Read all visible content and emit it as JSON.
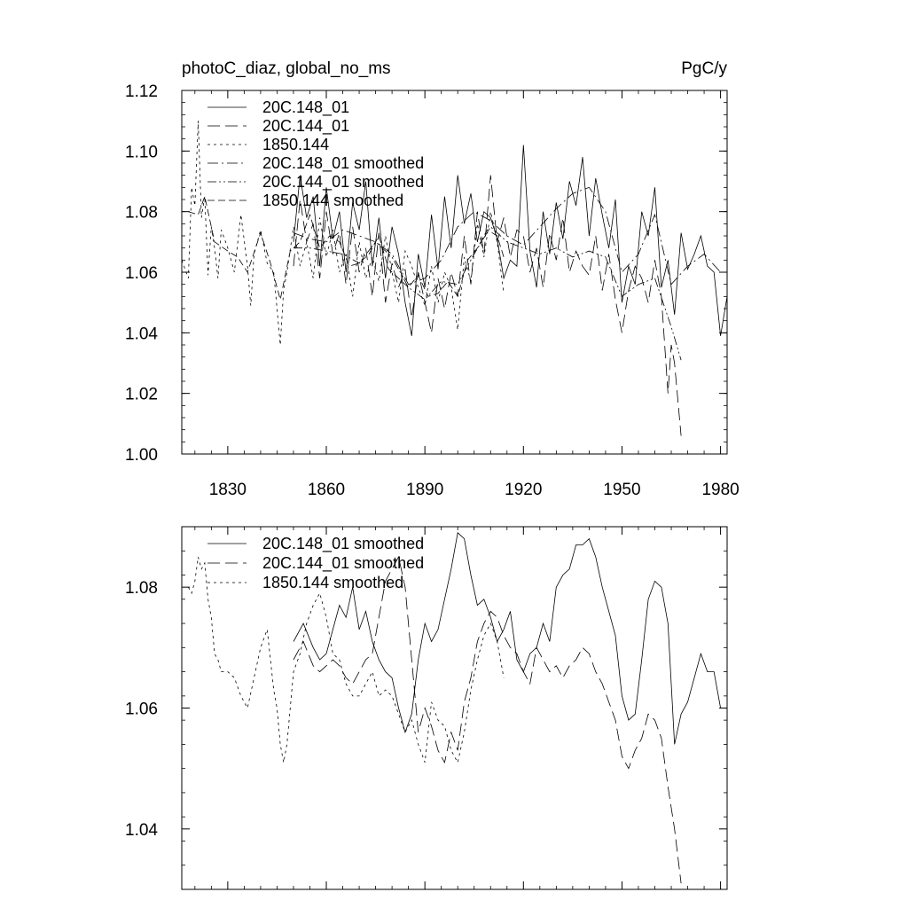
{
  "chart_data": [
    {
      "type": "line",
      "title": "photoC_diaz, global_no_ms",
      "units": "PgC/y",
      "xlim": [
        1816,
        1982
      ],
      "ylim": [
        1.0,
        1.12
      ],
      "xticks": [
        1830,
        1860,
        1890,
        1920,
        1950,
        1980
      ],
      "yticks": [
        1.0,
        1.02,
        1.04,
        1.06,
        1.08,
        1.1,
        1.12
      ],
      "ytick_labels": [
        "1.00",
        "1.02",
        "1.04",
        "1.06",
        "1.08",
        "1.10",
        "1.12"
      ],
      "legend": [
        "20C.148_01",
        "20C.144_01",
        "1850.144",
        "20C.148_01 smoothed",
        "20C.144_01 smoothed",
        "1850.144 smoothed"
      ],
      "series": [
        {
          "name": "20C.148_01",
          "dash": "solid",
          "x": [
            1850,
            1852,
            1854,
            1856,
            1858,
            1860,
            1862,
            1864,
            1866,
            1868,
            1870,
            1872,
            1874,
            1876,
            1878,
            1880,
            1882,
            1884,
            1886,
            1888,
            1890,
            1892,
            1894,
            1896,
            1898,
            1900,
            1902,
            1904,
            1906,
            1908,
            1910,
            1912,
            1914,
            1916,
            1918,
            1920,
            1922,
            1924,
            1926,
            1928,
            1930,
            1932,
            1934,
            1936,
            1938,
            1940,
            1942,
            1944,
            1946,
            1948,
            1950,
            1952,
            1954,
            1956,
            1958,
            1960,
            1962,
            1964,
            1966,
            1968,
            1970,
            1972,
            1974,
            1976,
            1978,
            1980,
            1982
          ],
          "values": [
            1.07,
            1.092,
            1.078,
            1.085,
            1.062,
            1.088,
            1.071,
            1.08,
            1.06,
            1.083,
            1.074,
            1.09,
            1.062,
            1.078,
            1.058,
            1.075,
            1.066,
            1.05,
            1.039,
            1.066,
            1.055,
            1.079,
            1.061,
            1.085,
            1.068,
            1.092,
            1.076,
            1.086,
            1.07,
            1.08,
            1.078,
            1.071,
            1.058,
            1.064,
            1.062,
            1.102,
            1.067,
            1.055,
            1.08,
            1.066,
            1.083,
            1.071,
            1.09,
            1.082,
            1.098,
            1.072,
            1.091,
            1.079,
            1.068,
            1.084,
            1.05,
            1.062,
            1.056,
            1.08,
            1.072,
            1.088,
            1.055,
            1.064,
            1.046,
            1.073,
            1.061,
            1.066,
            1.072,
            1.062,
            1.06,
            1.039,
            1.052
          ]
        },
        {
          "name": "20C.144_01",
          "dash": "long",
          "x": [
            1850,
            1852,
            1854,
            1856,
            1858,
            1860,
            1862,
            1864,
            1866,
            1868,
            1870,
            1872,
            1874,
            1876,
            1878,
            1880,
            1882,
            1884,
            1886,
            1888,
            1890,
            1892,
            1894,
            1896,
            1898,
            1900,
            1902,
            1904,
            1906,
            1908,
            1910,
            1912,
            1914,
            1916,
            1918,
            1920,
            1922,
            1924,
            1926,
            1928,
            1930,
            1932,
            1934,
            1936,
            1938,
            1940,
            1942,
            1944,
            1946,
            1948,
            1950,
            1952,
            1954,
            1956,
            1958,
            1960,
            1962,
            1964,
            1965,
            1966,
            1968
          ],
          "values": [
            1.062,
            1.084,
            1.07,
            1.076,
            1.058,
            1.08,
            1.066,
            1.073,
            1.056,
            1.075,
            1.06,
            1.068,
            1.052,
            1.073,
            1.05,
            1.063,
            1.055,
            1.061,
            1.045,
            1.06,
            1.05,
            1.04,
            1.058,
            1.048,
            1.06,
            1.052,
            1.072,
            1.056,
            1.08,
            1.066,
            1.092,
            1.07,
            1.078,
            1.065,
            1.074,
            1.072,
            1.06,
            1.068,
            1.055,
            1.073,
            1.064,
            1.078,
            1.06,
            1.067,
            1.062,
            1.059,
            1.072,
            1.054,
            1.066,
            1.051,
            1.04,
            1.054,
            1.062,
            1.058,
            1.05,
            1.064,
            1.052,
            1.02,
            1.036,
            1.03,
            1.006
          ]
        },
        {
          "name": "1850.144",
          "dash": "short",
          "x": [
            1816,
            1818,
            1819,
            1820,
            1821,
            1822,
            1823,
            1824,
            1825,
            1826,
            1827,
            1828,
            1830,
            1832,
            1834,
            1836,
            1837,
            1838,
            1840,
            1842,
            1844,
            1846,
            1847,
            1848,
            1850,
            1852,
            1854,
            1856,
            1858,
            1860,
            1862,
            1864,
            1866,
            1868,
            1870,
            1872,
            1874,
            1876,
            1878,
            1880,
            1882,
            1884,
            1886,
            1888,
            1890,
            1892,
            1894,
            1896,
            1898,
            1900,
            1902,
            1904,
            1906,
            1908,
            1910,
            1912,
            1914
          ],
          "values": [
            1.064,
            1.058,
            1.088,
            1.082,
            1.11,
            1.078,
            1.085,
            1.059,
            1.075,
            1.068,
            1.058,
            1.074,
            1.068,
            1.06,
            1.079,
            1.062,
            1.049,
            1.066,
            1.074,
            1.063,
            1.06,
            1.036,
            1.054,
            1.06,
            1.075,
            1.062,
            1.07,
            1.058,
            1.078,
            1.065,
            1.074,
            1.06,
            1.066,
            1.052,
            1.07,
            1.058,
            1.065,
            1.057,
            1.072,
            1.06,
            1.05,
            1.067,
            1.062,
            1.055,
            1.049,
            1.062,
            1.05,
            1.06,
            1.055,
            1.041,
            1.065,
            1.057,
            1.076,
            1.065,
            1.08,
            1.07,
            1.053
          ]
        },
        {
          "name": "20C.148_01 smoothed",
          "dash": "dashdot",
          "x": [
            1850,
            1855,
            1860,
            1865,
            1870,
            1875,
            1880,
            1885,
            1890,
            1895,
            1900,
            1905,
            1910,
            1915,
            1920,
            1925,
            1930,
            1935,
            1940,
            1945,
            1950,
            1955,
            1960,
            1965,
            1970,
            1975,
            1980
          ],
          "values": [
            1.073,
            1.071,
            1.07,
            1.074,
            1.072,
            1.07,
            1.066,
            1.056,
            1.058,
            1.064,
            1.075,
            1.08,
            1.077,
            1.072,
            1.069,
            1.075,
            1.081,
            1.086,
            1.088,
            1.08,
            1.06,
            1.066,
            1.079,
            1.056,
            1.062,
            1.066,
            1.06
          ]
        },
        {
          "name": "20C.144_01 smoothed",
          "dash": "dashdotdot",
          "x": [
            1850,
            1855,
            1860,
            1865,
            1870,
            1875,
            1880,
            1885,
            1890,
            1895,
            1900,
            1905,
            1910,
            1915,
            1920,
            1925,
            1930,
            1935,
            1940,
            1945,
            1950,
            1955,
            1960,
            1965,
            1968
          ],
          "values": [
            1.068,
            1.068,
            1.067,
            1.066,
            1.063,
            1.07,
            1.065,
            1.055,
            1.051,
            1.057,
            1.056,
            1.066,
            1.075,
            1.07,
            1.068,
            1.066,
            1.068,
            1.065,
            1.067,
            1.065,
            1.052,
            1.056,
            1.058,
            1.042,
            1.031
          ]
        },
        {
          "name": "1850.144 smoothed",
          "dash": "medium",
          "x": [
            1818,
            1821,
            1823,
            1826,
            1830,
            1833,
            1836,
            1840,
            1843,
            1846,
            1849,
            1852,
            1855,
            1858,
            1861,
            1864,
            1867,
            1870,
            1873,
            1876,
            1879,
            1882,
            1885,
            1888,
            1891,
            1894,
            1897,
            1900,
            1903,
            1906,
            1909,
            1912,
            1914
          ],
          "values": [
            1.08,
            1.079,
            1.085,
            1.07,
            1.067,
            1.065,
            1.06,
            1.073,
            1.063,
            1.051,
            1.067,
            1.07,
            1.079,
            1.068,
            1.072,
            1.07,
            1.062,
            1.063,
            1.066,
            1.072,
            1.061,
            1.058,
            1.055,
            1.059,
            1.052,
            1.053,
            1.057,
            1.052,
            1.064,
            1.068,
            1.074,
            1.072,
            1.065
          ]
        }
      ]
    },
    {
      "type": "line",
      "title": "",
      "xlim": [
        1816,
        1982
      ],
      "ylim": [
        1.03,
        1.09
      ],
      "xticks": [
        1830,
        1860,
        1890,
        1920,
        1950,
        1980
      ],
      "yticks": [
        1.04,
        1.06,
        1.08
      ],
      "ytick_labels": [
        "1.04",
        "1.06",
        "1.08"
      ],
      "legend": [
        "20C.148_01 smoothed",
        "20C.144_01 smoothed",
        "1850.144 smoothed"
      ],
      "series": [
        {
          "name": "20C.148_01 smoothed",
          "dash": "solid",
          "x": [
            1850,
            1853,
            1856,
            1858,
            1860,
            1862,
            1864,
            1866,
            1868,
            1870,
            1872,
            1874,
            1876,
            1878,
            1880,
            1882,
            1884,
            1886,
            1888,
            1890,
            1892,
            1894,
            1896,
            1898,
            1900,
            1902,
            1904,
            1906,
            1908,
            1910,
            1912,
            1914,
            1916,
            1918,
            1920,
            1922,
            1924,
            1926,
            1928,
            1930,
            1932,
            1934,
            1936,
            1938,
            1940,
            1942,
            1944,
            1946,
            1948,
            1950,
            1952,
            1954,
            1956,
            1958,
            1960,
            1962,
            1964,
            1966,
            1968,
            1970,
            1972,
            1974,
            1976,
            1978,
            1980
          ],
          "values": [
            1.071,
            1.074,
            1.07,
            1.068,
            1.069,
            1.073,
            1.077,
            1.075,
            1.08,
            1.073,
            1.076,
            1.071,
            1.068,
            1.066,
            1.065,
            1.06,
            1.056,
            1.059,
            1.068,
            1.074,
            1.071,
            1.073,
            1.078,
            1.083,
            1.089,
            1.088,
            1.082,
            1.077,
            1.078,
            1.075,
            1.071,
            1.073,
            1.076,
            1.068,
            1.066,
            1.069,
            1.07,
            1.074,
            1.071,
            1.08,
            1.082,
            1.083,
            1.087,
            1.087,
            1.088,
            1.085,
            1.08,
            1.076,
            1.072,
            1.062,
            1.058,
            1.059,
            1.068,
            1.078,
            1.081,
            1.08,
            1.074,
            1.054,
            1.059,
            1.061,
            1.065,
            1.069,
            1.066,
            1.066,
            1.06
          ]
        },
        {
          "name": "20C.144_01 smoothed",
          "dash": "long",
          "x": [
            1850,
            1853,
            1856,
            1858,
            1860,
            1862,
            1864,
            1866,
            1868,
            1870,
            1872,
            1874,
            1876,
            1878,
            1880,
            1882,
            1884,
            1886,
            1888,
            1890,
            1892,
            1894,
            1896,
            1898,
            1900,
            1902,
            1904,
            1906,
            1908,
            1910,
            1912,
            1914,
            1916,
            1918,
            1920,
            1922,
            1924,
            1926,
            1928,
            1930,
            1932,
            1934,
            1936,
            1938,
            1940,
            1942,
            1944,
            1946,
            1948,
            1950,
            1952,
            1954,
            1956,
            1958,
            1960,
            1962,
            1964,
            1966,
            1968
          ],
          "values": [
            1.068,
            1.071,
            1.067,
            1.066,
            1.067,
            1.068,
            1.067,
            1.065,
            1.064,
            1.066,
            1.068,
            1.069,
            1.075,
            1.081,
            1.083,
            1.085,
            1.08,
            1.068,
            1.056,
            1.06,
            1.057,
            1.053,
            1.051,
            1.056,
            1.053,
            1.061,
            1.065,
            1.071,
            1.074,
            1.076,
            1.075,
            1.072,
            1.07,
            1.069,
            1.066,
            1.064,
            1.07,
            1.068,
            1.066,
            1.067,
            1.065,
            1.067,
            1.068,
            1.07,
            1.069,
            1.066,
            1.064,
            1.061,
            1.058,
            1.052,
            1.05,
            1.053,
            1.055,
            1.059,
            1.058,
            1.055,
            1.047,
            1.04,
            1.031
          ]
        },
        {
          "name": "1850.144 smoothed",
          "dash": "short",
          "x": [
            1818,
            1819,
            1820,
            1821,
            1822,
            1823,
            1824,
            1825,
            1826,
            1827,
            1828,
            1830,
            1832,
            1834,
            1836,
            1838,
            1840,
            1842,
            1844,
            1845,
            1846,
            1847,
            1848,
            1850,
            1852,
            1854,
            1856,
            1858,
            1860,
            1862,
            1864,
            1866,
            1868,
            1870,
            1872,
            1874,
            1876,
            1878,
            1880,
            1882,
            1884,
            1886,
            1888,
            1890,
            1892,
            1894,
            1896,
            1898,
            1900,
            1902,
            1904,
            1906,
            1908,
            1910,
            1912,
            1914
          ],
          "values": [
            1.08,
            1.079,
            1.081,
            1.085,
            1.083,
            1.084,
            1.078,
            1.075,
            1.069,
            1.068,
            1.066,
            1.066,
            1.065,
            1.062,
            1.06,
            1.065,
            1.07,
            1.073,
            1.063,
            1.06,
            1.054,
            1.051,
            1.054,
            1.066,
            1.069,
            1.074,
            1.077,
            1.079,
            1.075,
            1.069,
            1.068,
            1.064,
            1.062,
            1.062,
            1.064,
            1.066,
            1.062,
            1.063,
            1.062,
            1.059,
            1.056,
            1.058,
            1.054,
            1.051,
            1.061,
            1.058,
            1.057,
            1.053,
            1.051,
            1.056,
            1.063,
            1.068,
            1.072,
            1.074,
            1.071,
            1.065
          ]
        }
      ]
    }
  ]
}
